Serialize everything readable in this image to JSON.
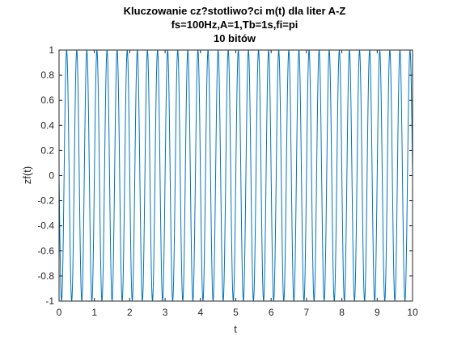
{
  "chart_data": {
    "type": "line",
    "title_lines": [
      "Kluczowanie cz?stotliwo?ci m(t) dla liter A-Z",
      "fs=100Hz,A=1,Tb=1s,fi=pi",
      "10 bitów"
    ],
    "xlabel": "t",
    "ylabel": "zf(t)",
    "xlim": [
      0,
      10
    ],
    "ylim": [
      -1,
      1
    ],
    "xticks": [
      "0",
      "1",
      "2",
      "3",
      "4",
      "5",
      "6",
      "7",
      "8",
      "9",
      "10"
    ],
    "yticks": [
      "-1",
      "-0.8",
      "-0.6",
      "-0.4",
      "-0.2",
      "0",
      "0.2",
      "0.4",
      "0.6",
      "0.8",
      "1"
    ],
    "grid": false,
    "series": [
      {
        "color": "#0072BD",
        "function": "sin(2*pi*f*t + pi)",
        "frequency_hz": 3.5,
        "t_start": 0,
        "t_end": 10,
        "sample_rate_hz": 100
      }
    ]
  }
}
